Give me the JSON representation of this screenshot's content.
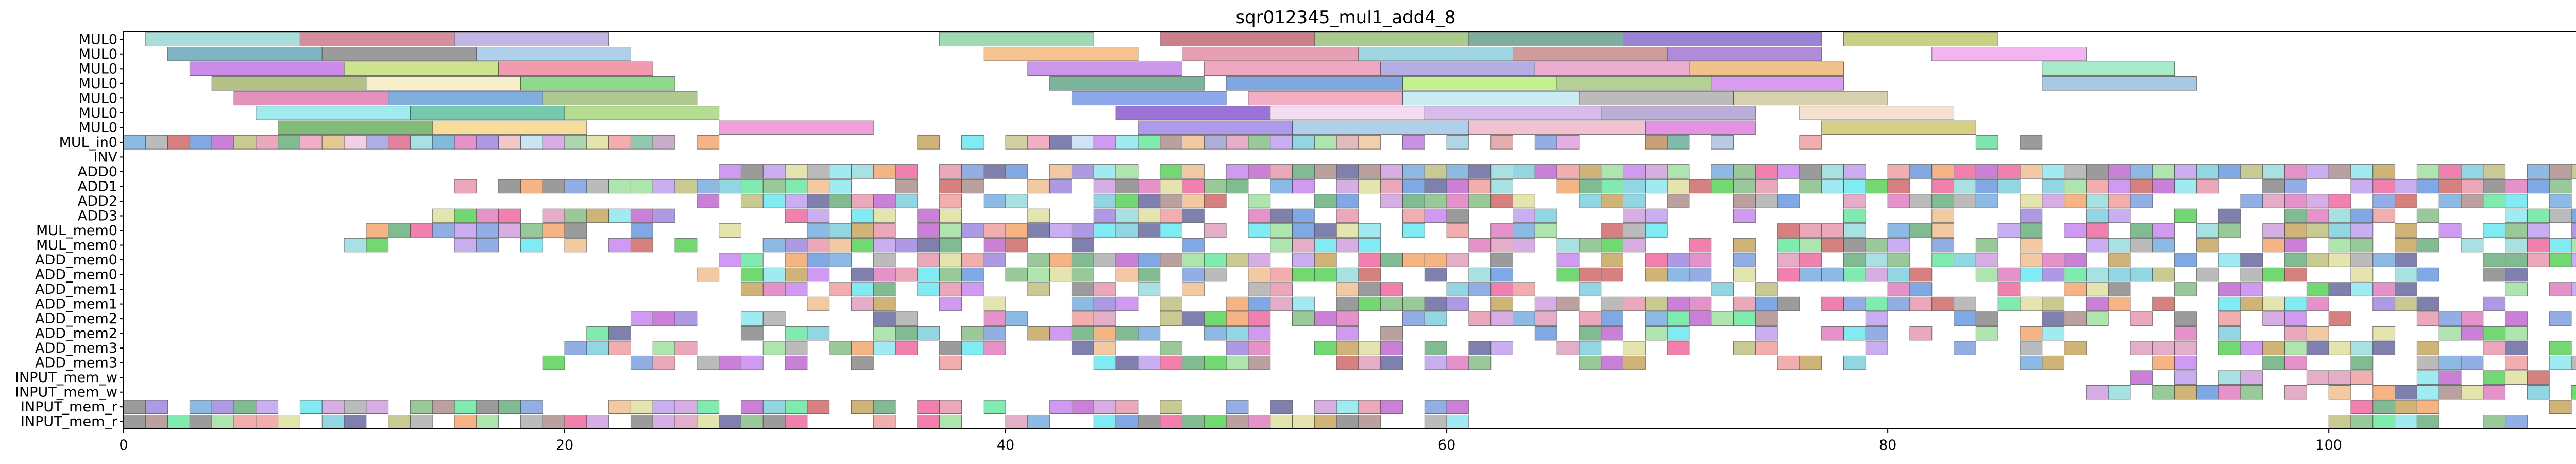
{
  "chart_data": {
    "type": "gantt",
    "title": "sqr012345_mul1_add4_8",
    "xlabel": "",
    "ylabel": "",
    "xlim": [
      0,
      116
    ],
    "x_ticks": [
      "0",
      "20",
      "40",
      "60",
      "80",
      "100"
    ],
    "grid": false,
    "legend": "none",
    "resources": [
      "MUL0",
      "MUL0",
      "MUL0",
      "MUL0",
      "MUL0",
      "MUL0",
      "MUL0",
      "MUL_in0",
      "INV",
      "ADD0",
      "ADD1",
      "ADD2",
      "ADD3",
      "MUL_mem0",
      "MUL_mem0",
      "ADD_mem0",
      "ADD_mem0",
      "ADD_mem1",
      "ADD_mem1",
      "ADD_mem2",
      "ADD_mem2",
      "ADD_mem3",
      "ADD_mem3",
      "INPUT_mem_w",
      "INPUT_mem_w",
      "INPUT_mem_r",
      "INPUT_mem_r"
    ],
    "tasks": {
      "MUL0#1": [
        [
          1,
          8,
          "#9ad9d4"
        ],
        [
          8,
          15,
          "#cf7a8c"
        ],
        [
          15,
          22,
          "#b9aae0"
        ],
        [
          37,
          44,
          "#90d4a8"
        ],
        [
          47,
          54,
          "#c26b78"
        ],
        [
          54,
          61,
          "#9cc27a"
        ],
        [
          61,
          68,
          "#6aa08e"
        ],
        [
          68,
          77,
          "#8a6fd0"
        ],
        [
          78,
          85,
          "#c0c870"
        ]
      ],
      "MUL0#2": [
        [
          2,
          9,
          "#6aa8b8"
        ],
        [
          9,
          16,
          "#8a8a8a"
        ],
        [
          16,
          23,
          "#a2c7e8"
        ],
        [
          39,
          46,
          "#f5b97e"
        ],
        [
          48,
          56,
          "#e58fa7"
        ],
        [
          56,
          63,
          "#8fd0dc"
        ],
        [
          63,
          70,
          "#c88a8a"
        ],
        [
          70,
          77,
          "#a377d4"
        ],
        [
          82,
          89,
          "#f2a8f0"
        ]
      ],
      "MUL0#3": [
        [
          3,
          10,
          "#c277e6"
        ],
        [
          10,
          17,
          "#c4e07a"
        ],
        [
          17,
          24,
          "#f08aa0"
        ],
        [
          41,
          48,
          "#c486e8"
        ],
        [
          49,
          57,
          "#ee9ab8"
        ],
        [
          57,
          64,
          "#a8a0e0"
        ],
        [
          64,
          71,
          "#e8a0c8"
        ],
        [
          71,
          78,
          "#f0b87a"
        ],
        [
          87,
          93,
          "#9ae8c0"
        ]
      ],
      "MUL0#4": [
        [
          4,
          11,
          "#a8b870"
        ],
        [
          11,
          18,
          "#f5ecc0"
        ],
        [
          18,
          25,
          "#7ad47a"
        ],
        [
          42,
          49,
          "#62a88a"
        ],
        [
          50,
          58,
          "#6a98e0"
        ],
        [
          58,
          65,
          "#b8f07a"
        ],
        [
          65,
          72,
          "#a8c880"
        ],
        [
          72,
          78,
          "#d68af0"
        ],
        [
          87,
          94,
          "#9ac0e0"
        ]
      ],
      "MUL0#5": [
        [
          5,
          12,
          "#e080b0"
        ],
        [
          12,
          19,
          "#6aa0d8"
        ],
        [
          19,
          26,
          "#a0c080"
        ],
        [
          43,
          50,
          "#7a9ae8"
        ],
        [
          51,
          58,
          "#f0a0b8"
        ],
        [
          58,
          66,
          "#c0e8f0"
        ],
        [
          66,
          73,
          "#b0b0b0"
        ],
        [
          73,
          80,
          "#d0c8a0"
        ]
      ],
      "MUL0#6": [
        [
          6,
          13,
          "#90e8e8"
        ],
        [
          13,
          20,
          "#60c0a0"
        ],
        [
          20,
          27,
          "#a8d880"
        ],
        [
          45,
          52,
          "#8a5ad0"
        ],
        [
          52,
          59,
          "#f0d8f0"
        ],
        [
          59,
          67,
          "#d0b0e8"
        ],
        [
          67,
          74,
          "#b0a0d0"
        ],
        [
          76,
          83,
          "#f5dcc8"
        ]
      ],
      "MUL0#7": [
        [
          7,
          14,
          "#6ab060"
        ],
        [
          14,
          21,
          "#f5d888"
        ],
        [
          27,
          34,
          "#f090d8"
        ],
        [
          46,
          53,
          "#a088e8"
        ],
        [
          53,
          61,
          "#a0c8e8"
        ],
        [
          61,
          69,
          "#f0b8c8"
        ],
        [
          69,
          74,
          "#e080e0"
        ],
        [
          77,
          84,
          "#d0c870"
        ]
      ]
    },
    "ops": {
      "MUL_in0": [
        [
          0,
          "#7aaee0"
        ],
        [
          1,
          "#b0b0b0"
        ],
        [
          2,
          "#d06a6a"
        ],
        [
          3,
          "#6a9ae0"
        ],
        [
          4,
          "#c06ad0"
        ],
        [
          5,
          "#c0c080"
        ],
        [
          6,
          "#e89ab0"
        ],
        [
          7,
          "#6ab080"
        ],
        [
          8,
          "#f0a0c0"
        ],
        [
          9,
          "#e0c080"
        ],
        [
          10,
          "#f0c8e0"
        ],
        [
          11,
          "#a0a0e0"
        ],
        [
          12,
          "#e06a90"
        ],
        [
          13,
          "#9adcdc"
        ],
        [
          14,
          "#6ab0d8"
        ],
        [
          15,
          "#e080c0"
        ],
        [
          16,
          "#a088e0"
        ],
        [
          17,
          "#f0c0c0"
        ],
        [
          18,
          "#c0e0f0"
        ],
        [
          19,
          "#d0a0e0"
        ],
        [
          20,
          "#a0d0a0"
        ],
        [
          21,
          "#e0e0a0"
        ],
        [
          22,
          "#f0a0a0"
        ],
        [
          23,
          "#80c0a0"
        ],
        [
          24,
          "#c0a0c0"
        ],
        [
          26,
          "#f5a870"
        ],
        [
          36,
          "#c8a860"
        ],
        [
          38,
          "#6ae8f0"
        ],
        [
          40,
          "#c8c890"
        ],
        [
          41,
          "#f0a0b8"
        ],
        [
          42,
          "#6a6aa0"
        ],
        [
          43,
          "#c8e0f8"
        ],
        [
          44,
          "#c888f0"
        ],
        [
          45,
          "#90e8f0"
        ],
        [
          46,
          "#6ae8a0"
        ],
        [
          47,
          "#b09090"
        ],
        [
          48,
          "#f0c090"
        ],
        [
          49,
          "#a0a0d0"
        ],
        [
          50,
          "#e0a0c0"
        ],
        [
          51,
          "#88c088"
        ],
        [
          52,
          "#c0a0f0"
        ],
        [
          53,
          "#80d0e0"
        ],
        [
          54,
          "#a0e0a0"
        ],
        [
          55,
          "#e0b0b0"
        ],
        [
          56,
          "#f0c8a0"
        ],
        [
          58,
          "#c080e0"
        ],
        [
          60,
          "#a0d0e0"
        ],
        [
          62,
          "#e0a0a0"
        ],
        [
          64,
          "#80a0e0"
        ],
        [
          65,
          "#e0a0e0"
        ],
        [
          69,
          "#c09060"
        ],
        [
          70,
          "#6ab0a0"
        ],
        [
          72,
          "#b0c0e0"
        ],
        [
          76,
          "#f0a0a0"
        ],
        [
          84,
          "#6ae0a0"
        ],
        [
          86,
          "#8a8a8a"
        ]
      ]
    }
  }
}
